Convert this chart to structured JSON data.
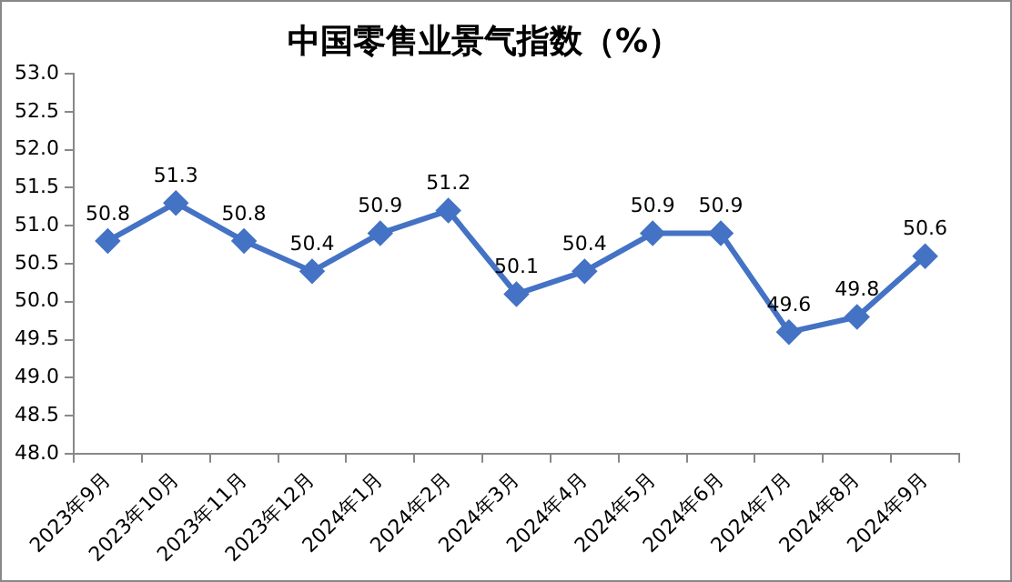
{
  "chart_data": {
    "type": "line",
    "title": "中国零售业景气指数（%）",
    "categories": [
      "2023年9月",
      "2023年10月",
      "2023年11月",
      "2023年12月",
      "2024年1月",
      "2024年2月",
      "2024年3月",
      "2024年4月",
      "2024年5月",
      "2024年6月",
      "2024年7月",
      "2024年8月",
      "2024年9月"
    ],
    "series": [
      {
        "color": "#4472c4",
        "values": [
          50.8,
          51.3,
          50.8,
          50.4,
          50.9,
          51.2,
          50.1,
          50.4,
          50.9,
          50.9,
          49.6,
          49.8,
          50.6
        ]
      }
    ],
    "ylim": [
      48,
      53
    ],
    "yticks": [
      {
        "value": 48,
        "label": "48.0"
      },
      {
        "value": 48.5,
        "label": "48.5"
      },
      {
        "value": 49,
        "label": "49.0"
      },
      {
        "value": 49.5,
        "label": "49.5"
      },
      {
        "value": 50,
        "label": "50.0"
      },
      {
        "value": 50.5,
        "label": "50.5"
      },
      {
        "value": 51,
        "label": "51.0"
      },
      {
        "value": 51.5,
        "label": "51.5"
      },
      {
        "value": 52,
        "label": "52.0"
      },
      {
        "value": 52.5,
        "label": "52.5"
      },
      {
        "value": 53,
        "label": "53.0"
      }
    ],
    "grid": false,
    "legend": false,
    "marker": "diamond",
    "line_style": "solid",
    "data_labels": true
  }
}
